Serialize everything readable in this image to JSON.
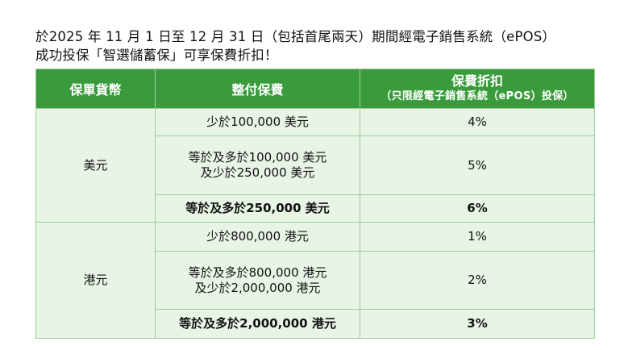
{
  "intro": {
    "line1": "於2025 年 11 月 1 日至 12 月 31 日（包括首尾兩天）期間經電子銷售系統（ePOS）",
    "line2": "成功投保「智選儲蓄保」可享保費折扣！"
  },
  "table": {
    "headers": {
      "currency": "保單貨幣",
      "premium": "整付保費",
      "discount": "保費折扣",
      "discount_note": "（只限經電子銷售系統（ePOS）投保）"
    },
    "groups": [
      {
        "currency": "美元",
        "rows": [
          {
            "line1": "少於100,000 美元",
            "line2": "",
            "discount": "4%",
            "bold": false
          },
          {
            "line1": "等於及多於100,000 美元",
            "line2": "及少於250,000 美元",
            "discount": "5%",
            "bold": false
          },
          {
            "line1": "等於及多於250,000 美元",
            "line2": "",
            "discount": "6%",
            "bold": true
          }
        ]
      },
      {
        "currency": "港元",
        "rows": [
          {
            "line1": "少於800,000 港元",
            "line2": "",
            "discount": "1%",
            "bold": false
          },
          {
            "line1": "等於及多於800,000 港元",
            "line2": "及少於2,000,000 港元",
            "discount": "2%",
            "bold": false
          },
          {
            "line1": "等於及多於2,000,000 港元",
            "line2": "",
            "discount": "3%",
            "bold": true
          }
        ]
      }
    ]
  }
}
